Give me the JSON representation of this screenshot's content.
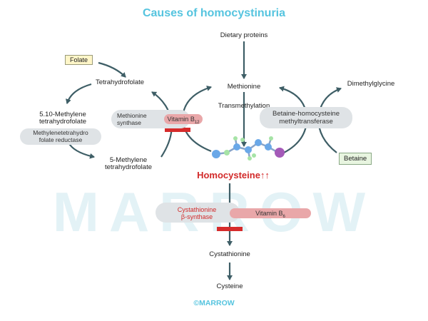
{
  "title": "Causes of homocystinuria",
  "watermark": "MARROW",
  "copyright": "©MARROW",
  "nodes": {
    "dietary_proteins": "Dietary proteins",
    "methionine": "Methionine",
    "transmethylation": "Transmethylation",
    "homocysteine": "Homocysteine↑↑",
    "cystathionine": "Cystathionine",
    "cysteine": "Cysteine",
    "tetrahydrofolate": "Tetrahydrofolate",
    "methylene_thf_line1": "5.10-Methylene",
    "methylene_thf_line2": "tetrahydrofolate",
    "methyl_thf_line1": "5-Methylene",
    "methyl_thf_line2": "tetrahydrofolate",
    "dimethylglycine": "Dimethylglycine"
  },
  "boxes": {
    "folate": "Folate",
    "betaine": "Betaine"
  },
  "enzymes": {
    "mthfr_line1": "Methylenetetrahydro",
    "mthfr_line2": "folate reductase",
    "methionine_synthase_line1": "Methionine",
    "methionine_synthase_line2": "synthase",
    "bhmt_line1": "Betaine-homocysteine",
    "bhmt_line2": "methyltransferase",
    "cbs_line1": "Cystathionine",
    "cbs_line2": "β-synthase"
  },
  "cofactors": {
    "vitamin_b12": "Vitamin B",
    "vitamin_b12_sub": "12",
    "vitamin_b6": "Vitamin B",
    "vitamin_b6_sub": "6"
  },
  "colors": {
    "arrow": "#3e5e66",
    "title": "#55c4df",
    "block": "#d62b2b",
    "homocysteine": "#d22a2a"
  }
}
